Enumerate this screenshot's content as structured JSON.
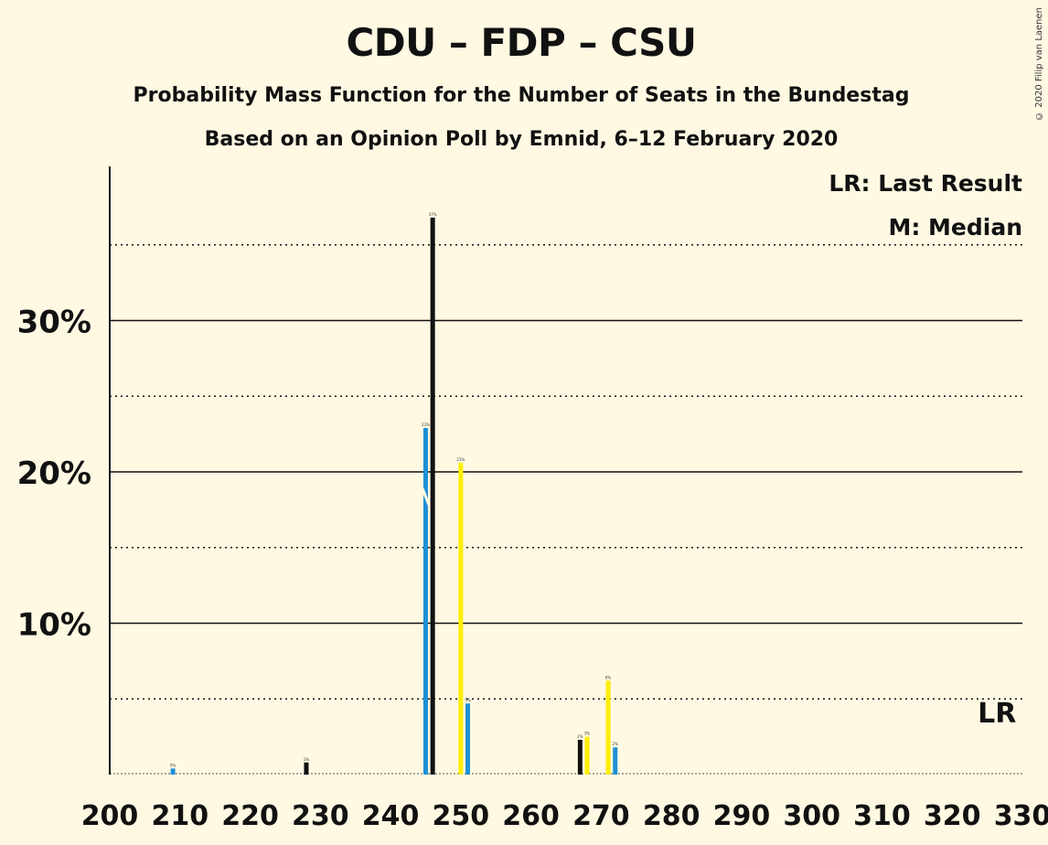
{
  "header": {
    "title": "CDU – FDP – CSU",
    "subtitle": "Probability Mass Function for the Number of Seats in the Bundestag",
    "source": "Based on an Opinion Poll by Emnid, 6–12 February 2020",
    "copyright": "© 2020 Filip van Laenen"
  },
  "legend": {
    "last_result": "LR: Last Result",
    "median": "M: Median",
    "lr_marker": "LR"
  },
  "colors": {
    "background": "#FFF9E3",
    "blue": "#1E90D6",
    "yellow": "#FFEE00",
    "black": "#111111"
  },
  "chart_data": {
    "type": "bar",
    "xlim": [
      200,
      330
    ],
    "ylim": [
      0,
      40
    ],
    "x_ticks": [
      200,
      210,
      220,
      230,
      240,
      250,
      260,
      270,
      280,
      290,
      300,
      310,
      320,
      330
    ],
    "y_ticks_major": [
      10,
      20,
      30
    ],
    "y_ticks_major_labels": [
      "10%",
      "20%",
      "30%"
    ],
    "y_ticks_minor": [
      5,
      15,
      25,
      35
    ],
    "grid": true,
    "legend_position": "top-right",
    "median_seat": 246,
    "last_result_seat": 326,
    "series": [
      {
        "color": "blue",
        "values": [
          {
            "x": 209,
            "y": 0.4
          },
          {
            "x": 245,
            "y": 22.9
          },
          {
            "x": 251,
            "y": 4.7
          },
          {
            "x": 272,
            "y": 1.8
          }
        ]
      },
      {
        "color": "black",
        "values": [
          {
            "x": 228,
            "y": 0.8
          },
          {
            "x": 246,
            "y": 36.8
          },
          {
            "x": 267,
            "y": 2.3
          }
        ]
      },
      {
        "color": "yellow",
        "values": [
          {
            "x": 250,
            "y": 20.6
          },
          {
            "x": 268,
            "y": 2.5
          },
          {
            "x": 271,
            "y": 6.2
          }
        ]
      }
    ]
  }
}
